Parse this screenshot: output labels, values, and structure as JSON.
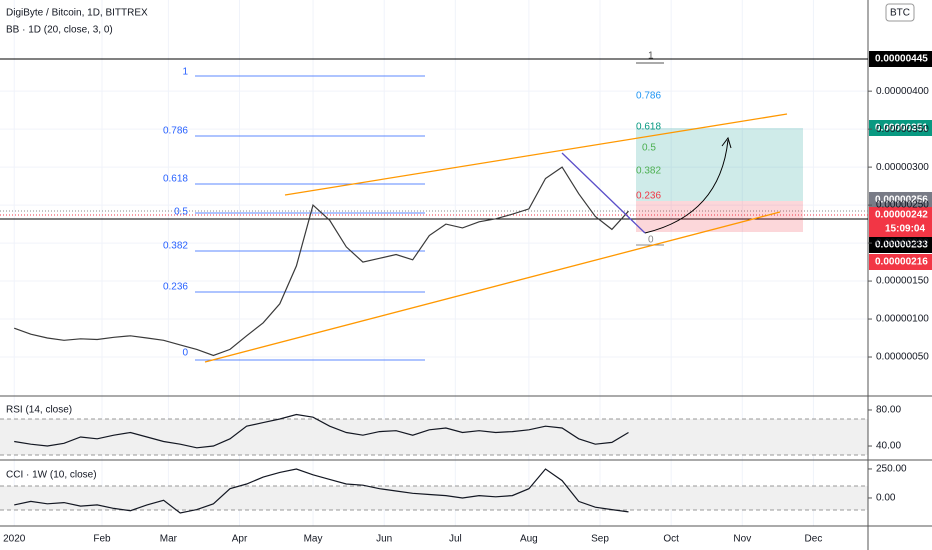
{
  "chart_data": [
    {
      "type": "line",
      "title": "DigiByte / Bitcoin, 1D, BITTREX",
      "subtitle": "BB · 1D (20, close, 3, 0)",
      "color": "#3a3a3a",
      "grid": true,
      "x": [
        0,
        7,
        14,
        21,
        28,
        35,
        42,
        49,
        56,
        63,
        70,
        77,
        84,
        91,
        98,
        105,
        112,
        119,
        126,
        133,
        140,
        147,
        154,
        161,
        168,
        175,
        182,
        189,
        196,
        203,
        210,
        217,
        224,
        231,
        238,
        245,
        252,
        259
      ],
      "values": [
        8.8e-07,
        8e-07,
        7.5e-07,
        7.2e-07,
        7.4e-07,
        7.3e-07,
        7.6e-07,
        7.8e-07,
        7.5e-07,
        7.2e-07,
        6.6e-07,
        6e-07,
        5.2e-07,
        6e-07,
        7.8e-07,
        9.5e-07,
        1.2e-06,
        1.7e-06,
        2.5e-06,
        2.3e-06,
        1.95e-06,
        1.75e-06,
        1.8e-06,
        1.85e-06,
        1.78e-06,
        2.1e-06,
        2.25e-06,
        2.2e-06,
        2.28e-06,
        2.32e-06,
        2.38e-06,
        2.45e-06,
        2.85e-06,
        3e-06,
        2.65e-06,
        2.35e-06,
        2.18e-06,
        2.42e-06
      ],
      "xlim": [
        -6,
        360
      ],
      "xticks": [
        {
          "value": 0,
          "label": "2020"
        },
        {
          "value": 37,
          "label": "Feb"
        },
        {
          "value": 65,
          "label": "Mar"
        },
        {
          "value": 95,
          "label": "Apr"
        },
        {
          "value": 126,
          "label": "May"
        },
        {
          "value": 156,
          "label": "Jun"
        },
        {
          "value": 186,
          "label": "Jul"
        },
        {
          "value": 217,
          "label": "Aug"
        },
        {
          "value": 247,
          "label": "Sep"
        },
        {
          "value": 277,
          "label": "Oct"
        },
        {
          "value": 307,
          "label": "Nov"
        },
        {
          "value": 337,
          "label": "Dec"
        }
      ],
      "ylim": [
        0,
        5.2e-06
      ],
      "yticks": [
        {
          "value": 5e-07,
          "label": "0.00000050"
        },
        {
          "value": 1e-06,
          "label": "0.00000100"
        },
        {
          "value": 1.5e-06,
          "label": "0.00000150"
        },
        {
          "value": 2e-06,
          "label": "0.00000200"
        },
        {
          "value": 2.5e-06,
          "label": "0.00000250"
        },
        {
          "value": 3e-06,
          "label": "0.00000300"
        },
        {
          "value": 3.5e-06,
          "label": "0.00000350"
        },
        {
          "value": 4e-06,
          "label": "0.00000400"
        }
      ]
    },
    {
      "type": "line",
      "title": "RSI (14, close)",
      "color": "#131722",
      "grid": false,
      "x": [
        0,
        7,
        14,
        21,
        28,
        35,
        42,
        49,
        56,
        63,
        70,
        77,
        84,
        91,
        98,
        105,
        112,
        119,
        126,
        133,
        140,
        147,
        154,
        161,
        168,
        175,
        182,
        189,
        196,
        203,
        210,
        217,
        224,
        231,
        238,
        245,
        252,
        259
      ],
      "values": [
        45,
        42,
        40,
        43,
        50,
        48,
        52,
        55,
        50,
        45,
        42,
        38,
        40,
        48,
        62,
        66,
        70,
        75,
        72,
        62,
        55,
        52,
        56,
        57,
        52,
        58,
        60,
        55,
        57,
        55,
        56,
        58,
        62,
        60,
        48,
        42,
        44,
        55
      ],
      "xlim": [
        -6,
        360
      ],
      "ylim": [
        26.7,
        93.3
      ],
      "yticks": [
        {
          "value": 40,
          "label": "40.00"
        },
        {
          "value": 80,
          "label": "80.00"
        }
      ]
    },
    {
      "type": "line",
      "title": "CCI · 1W (10, close)",
      "color": "#131722",
      "grid": false,
      "x": [
        0,
        7,
        14,
        21,
        28,
        35,
        42,
        49,
        56,
        63,
        70,
        77,
        84,
        91,
        98,
        105,
        112,
        119,
        126,
        133,
        140,
        147,
        154,
        161,
        168,
        175,
        182,
        189,
        196,
        203,
        210,
        217,
        224,
        231,
        238,
        245,
        252,
        259
      ],
      "values": [
        -60,
        -30,
        -50,
        -40,
        -70,
        -60,
        -90,
        -110,
        -60,
        -20,
        -130,
        -100,
        -50,
        80,
        120,
        180,
        220,
        250,
        200,
        160,
        120,
        110,
        80,
        60,
        40,
        30,
        20,
        0,
        20,
        10,
        20,
        80,
        250,
        150,
        -30,
        -80,
        -100,
        -120
      ],
      "xlim": [
        -6,
        360
      ],
      "ylim": [
        -233,
        310
      ],
      "yticks": [
        {
          "value": 0,
          "label": "0.00"
        },
        {
          "value": 250,
          "label": "250.00"
        }
      ]
    }
  ],
  "currency": "BTC",
  "fib_left": [
    1,
    0.786,
    0.618,
    0.5,
    0.382,
    0.236,
    0
  ],
  "fib_right": [
    1,
    0.786,
    0.618,
    0.5,
    0.382,
    0.236,
    0
  ],
  "price_labels": [
    "0.00000445",
    "0.00000351",
    "0.00000256",
    "0.00000242",
    "15:09:04",
    "0.00000233",
    "0.00000216"
  ]
}
